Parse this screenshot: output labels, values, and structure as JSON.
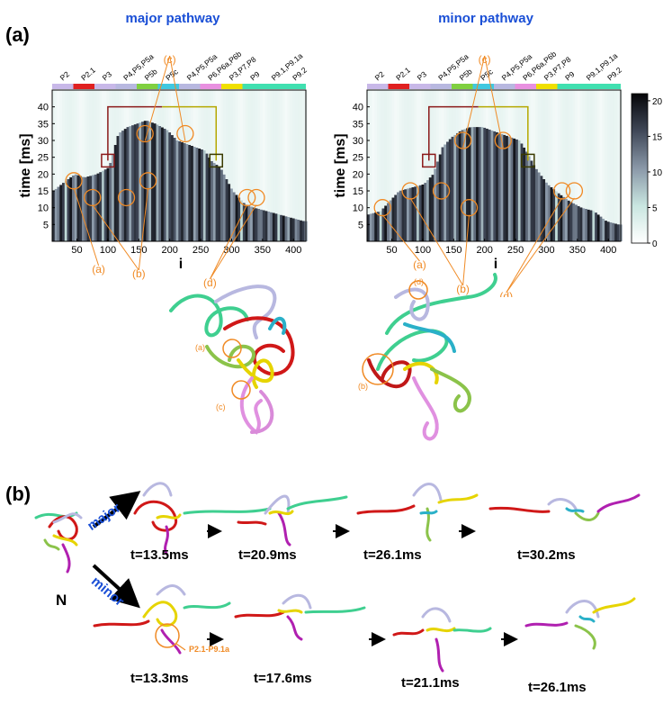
{
  "figure": {
    "panel_a_label": "(a)",
    "panel_b_label": "(b)"
  },
  "colors": {
    "title_blue": "#1a4fd6",
    "annot_orange": "#f08a24",
    "box_red": "#8b1a1a",
    "box_yellow": "#b5a800"
  },
  "segments": [
    {
      "label": "P2",
      "color": "#c8b8e8"
    },
    {
      "label": "P2.1",
      "color": "#e02020"
    },
    {
      "label": "P3",
      "color": "#c8b8e8"
    },
    {
      "label": "P4,P5,P5a",
      "color": "#b8b8e0"
    },
    {
      "label": "P5b",
      "color": "#80d040"
    },
    {
      "label": "P5c",
      "color": "#40c8e0"
    },
    {
      "label": "P4,P5,P5a",
      "color": "#b8b8e0"
    },
    {
      "label": "P6,P6a,P6b",
      "color": "#e890e0"
    },
    {
      "label": "P3,P7,P8",
      "color": "#f0e000"
    },
    {
      "label": "P9",
      "color": "#40e0b0"
    },
    {
      "label": "P9.1,P9.1a",
      "color": "#40e0b0"
    },
    {
      "label": "P9.2",
      "color": "#40e0b0"
    }
  ],
  "chart_data": [
    {
      "type": "heatmap",
      "title": "major pathway",
      "ylabel": "time [ms]",
      "xlabel": "i",
      "xlim": [
        10,
        420
      ],
      "ylim": [
        0,
        45
      ],
      "xticks": [
        "50",
        "100",
        "150",
        "200",
        "250",
        "300",
        "350",
        "400"
      ],
      "yticks": [
        "5",
        "10",
        "15",
        "20",
        "25",
        "30",
        "35",
        "40"
      ],
      "annotations": [
        "(a)",
        "(b)",
        "(c)",
        "(d)"
      ],
      "unfold_profile_x": [
        10,
        30,
        45,
        60,
        80,
        100,
        115,
        130,
        145,
        160,
        175,
        195,
        210,
        225,
        240,
        255,
        265,
        280,
        300,
        320,
        335,
        355,
        375,
        395,
        415
      ],
      "unfold_profile_t": [
        15,
        18,
        20,
        19,
        20,
        22,
        32,
        34,
        35,
        36,
        35,
        33,
        30,
        29,
        28,
        27,
        24,
        22,
        15,
        11,
        10,
        9,
        8,
        7,
        6
      ]
    },
    {
      "type": "heatmap",
      "title": "minor pathway",
      "ylabel": "time [ms]",
      "xlabel": "i",
      "xlim": [
        10,
        420
      ],
      "ylim": [
        0,
        45
      ],
      "xticks": [
        "50",
        "100",
        "150",
        "200",
        "250",
        "300",
        "350",
        "400"
      ],
      "yticks": [
        "5",
        "10",
        "15",
        "20",
        "25",
        "30",
        "35",
        "40"
      ],
      "annotations": [
        "(a)",
        "(b)",
        "(c)",
        "(d)"
      ],
      "unfold_profile_x": [
        10,
        30,
        45,
        60,
        80,
        100,
        115,
        130,
        145,
        160,
        175,
        195,
        210,
        225,
        240,
        255,
        265,
        280,
        300,
        320,
        335,
        355,
        375,
        395,
        415
      ],
      "unfold_profile_t": [
        8,
        9,
        12,
        15,
        16,
        17,
        20,
        28,
        31,
        33,
        34,
        34,
        33,
        32,
        31,
        30,
        27,
        22,
        17,
        14,
        12,
        10,
        9,
        6,
        5
      ]
    }
  ],
  "colorbar": {
    "ticks": [
      "0",
      "5",
      "10",
      "15",
      "20"
    ],
    "range": [
      0,
      21
    ]
  },
  "structure_annotations": {
    "major": [
      "(a)",
      "(c)"
    ],
    "minor": [
      "(d)",
      "(b)"
    ]
  },
  "panel_b": {
    "start_label": "N",
    "major_label": "major",
    "minor_label": "minor",
    "major_times": [
      "t=13.5ms",
      "t=20.9ms",
      "t=26.1ms",
      "t=30.2ms"
    ],
    "minor_times": [
      "t=13.3ms",
      "t=17.6ms",
      "t=21.1ms",
      "t=26.1ms"
    ],
    "minor_callout": "P2.1-P9.1a"
  }
}
